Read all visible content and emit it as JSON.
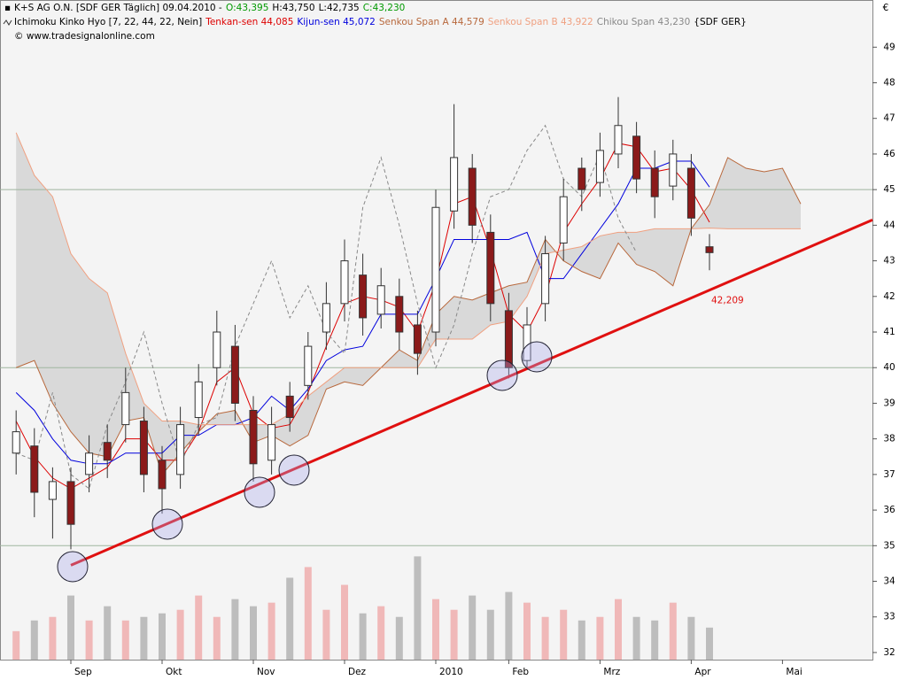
{
  "chart_data": {
    "type": "candlestick",
    "title": "K+S AG O.N. [SDF GER  Täglich] 09.04.2010 -",
    "quote": [
      {
        "label": "O:43,395",
        "color": "#009900"
      },
      {
        "label": "H:43,750",
        "color": "#000000"
      },
      {
        "label": "L:42,735",
        "color": "#000000"
      },
      {
        "label": "C:43,230",
        "color": "#009900"
      }
    ],
    "indicator": "Ichimoku Kinko Hyo [7, 22, 44, 22, Nein]",
    "indicator_suffix": "{SDF GER}",
    "source": "© www.tradesignalonline.com",
    "currency": "€",
    "categories": [
      null,
      null,
      null,
      "Sep",
      null,
      null,
      null,
      null,
      "Okt",
      null,
      null,
      null,
      null,
      "Nov",
      null,
      null,
      null,
      null,
      "Dez",
      null,
      null,
      null,
      null,
      "2010",
      null,
      null,
      null,
      "Feb",
      null,
      null,
      null,
      null,
      "Mrz",
      null,
      null,
      null,
      null,
      "Apr",
      null,
      null,
      null,
      null,
      "Mai",
      null
    ],
    "open": [
      37.6,
      37.8,
      36.3,
      36.8,
      37.0,
      37.9,
      38.4,
      38.5,
      37.4,
      37.0,
      38.6,
      40.0,
      40.6,
      38.8,
      37.4,
      39.2,
      39.5,
      41.0,
      41.8,
      42.6,
      41.5,
      42.0,
      41.2,
      41.0,
      44.4,
      45.6,
      43.8,
      41.6,
      40.2,
      41.8,
      43.5,
      45.6,
      45.2,
      46.0,
      46.5,
      45.6,
      45.1,
      45.6,
      43.395,
      null,
      null,
      null,
      null,
      null
    ],
    "high": [
      38.8,
      38.3,
      37.2,
      37.2,
      38.1,
      38.4,
      40.0,
      38.9,
      37.8,
      38.9,
      40.1,
      41.6,
      41.2,
      39.2,
      38.9,
      39.6,
      41.0,
      42.4,
      43.6,
      43.2,
      42.8,
      42.5,
      41.6,
      45.0,
      47.4,
      46.0,
      44.3,
      42.1,
      41.7,
      43.7,
      45.3,
      45.9,
      46.6,
      47.6,
      46.9,
      46.1,
      46.4,
      46.0,
      43.75,
      null,
      null,
      null,
      null,
      null
    ],
    "low": [
      37.0,
      35.8,
      35.2,
      34.9,
      36.5,
      36.9,
      37.9,
      36.5,
      35.9,
      36.6,
      38.1,
      39.5,
      38.5,
      36.8,
      37.0,
      38.2,
      39.1,
      40.5,
      41.3,
      40.9,
      41.1,
      40.5,
      39.8,
      40.6,
      43.9,
      43.5,
      41.3,
      39.7,
      40.0,
      41.3,
      43.0,
      44.4,
      44.8,
      45.6,
      44.9,
      44.2,
      44.7,
      43.7,
      42.735,
      null,
      null,
      null,
      null,
      null
    ],
    "close": [
      38.2,
      36.5,
      36.8,
      35.6,
      37.6,
      37.4,
      39.3,
      37.0,
      36.6,
      38.4,
      39.6,
      41.0,
      39.0,
      37.3,
      38.4,
      38.6,
      40.6,
      41.8,
      43.0,
      41.4,
      42.3,
      41.0,
      40.4,
      44.5,
      45.9,
      44.0,
      41.8,
      40.0,
      41.2,
      43.2,
      44.8,
      45.0,
      46.1,
      46.8,
      45.3,
      44.8,
      46.0,
      44.2,
      43.23,
      null,
      null,
      null,
      null,
      null
    ],
    "up_color": "#ffffff",
    "down_color": "#8b1a1a",
    "wick_color": "#333333",
    "volume": [
      32.6,
      32.9,
      33.0,
      33.6,
      32.9,
      33.3,
      32.9,
      33.0,
      33.1,
      33.2,
      33.6,
      33.0,
      33.5,
      33.3,
      33.4,
      34.1,
      34.4,
      33.2,
      33.9,
      33.1,
      33.3,
      33.0,
      34.7,
      33.5,
      33.2,
      33.6,
      33.2,
      33.7,
      33.4,
      33.0,
      33.2,
      32.9,
      33.0,
      33.5,
      33.0,
      32.9,
      33.4,
      33.0,
      32.7,
      null,
      null,
      null,
      null,
      null
    ],
    "volume_up_color": "#f0b8b8",
    "volume_down_color": "#bdbdbd",
    "cloud_color": "#d4d4d4",
    "series": [
      {
        "name": "Tenkan-sen 44,085",
        "color": "#dd0000",
        "values": [
          38.5,
          37.5,
          36.9,
          36.6,
          36.9,
          37.2,
          38.0,
          38.0,
          37.4,
          37.4,
          38.2,
          39.6,
          40.0,
          38.7,
          38.3,
          38.4,
          39.3,
          40.6,
          41.8,
          42.0,
          41.9,
          41.7,
          41.0,
          42.4,
          44.6,
          44.8,
          43.3,
          41.5,
          41.0,
          42.0,
          43.8,
          44.6,
          45.3,
          46.3,
          46.2,
          45.5,
          45.6,
          45.0,
          44.085,
          null,
          null,
          null,
          null,
          null
        ]
      },
      {
        "name": "Kijun-sen 45,072",
        "color": "#0000dd",
        "values": [
          39.3,
          38.8,
          38.0,
          37.4,
          37.3,
          37.3,
          37.6,
          37.6,
          37.6,
          38.1,
          38.1,
          38.4,
          38.4,
          38.6,
          39.2,
          38.8,
          39.4,
          40.2,
          40.5,
          40.6,
          41.5,
          41.5,
          41.5,
          42.5,
          43.6,
          43.6,
          43.6,
          43.6,
          43.8,
          42.5,
          42.5,
          43.2,
          43.9,
          44.6,
          45.6,
          45.6,
          45.8,
          45.8,
          45.072,
          null,
          null,
          null,
          null,
          null
        ]
      },
      {
        "name": "Senkou Span A 44,579",
        "color": "#b8683c",
        "values": [
          40.0,
          40.2,
          39.0,
          38.2,
          37.6,
          37.5,
          38.5,
          38.6,
          37.0,
          37.6,
          38.2,
          38.7,
          38.8,
          37.9,
          38.1,
          37.8,
          38.1,
          39.4,
          39.6,
          39.5,
          40.0,
          40.5,
          40.2,
          41.5,
          42.0,
          41.9,
          42.1,
          42.3,
          42.4,
          43.6,
          43.0,
          42.7,
          42.5,
          43.5,
          42.9,
          42.7,
          42.3,
          43.9,
          44.58,
          45.9,
          45.6,
          45.5,
          45.6,
          44.6
        ]
      },
      {
        "name": "Senkou Span B 43,922",
        "color": "#f0a080",
        "values": [
          46.6,
          45.4,
          44.8,
          43.2,
          42.5,
          42.1,
          40.4,
          39.0,
          38.5,
          38.5,
          38.4,
          38.4,
          38.4,
          38.4,
          38.4,
          38.7,
          39.2,
          39.6,
          40.0,
          40.0,
          40.0,
          40.0,
          40.0,
          40.8,
          40.8,
          40.8,
          41.2,
          41.3,
          42.0,
          43.2,
          43.3,
          43.4,
          43.7,
          43.8,
          43.8,
          43.9,
          43.9,
          43.9,
          43.92,
          43.9,
          43.9,
          43.9,
          43.9,
          43.9
        ]
      },
      {
        "name": "Chikou Span 43,230",
        "color": "#888888",
        "dashed": true,
        "values": [
          37.6,
          37.4,
          39.3,
          37.0,
          36.6,
          38.4,
          39.6,
          41.0,
          39.0,
          37.3,
          38.4,
          38.6,
          40.6,
          41.8,
          43.0,
          41.4,
          42.3,
          41.0,
          40.4,
          44.5,
          45.9,
          44.0,
          41.8,
          40.0,
          41.2,
          43.2,
          44.8,
          45.0,
          46.1,
          46.8,
          45.3,
          44.8,
          46.0,
          44.2,
          43.23,
          null,
          null,
          null,
          null,
          null,
          null,
          null,
          null,
          null
        ]
      }
    ],
    "trendline": {
      "values": [
        34.45,
        44.15
      ],
      "color": "#e01010",
      "label": "42,209"
    },
    "ylim": [
      31.8,
      50.3
    ],
    "yticks": [
      32,
      33,
      34,
      35,
      36,
      37,
      38,
      39,
      40,
      41,
      42,
      43,
      44,
      45,
      46,
      47,
      48,
      49
    ],
    "major_yticks": [
      35,
      40,
      45
    ],
    "grid_color": "#9fb59f"
  }
}
